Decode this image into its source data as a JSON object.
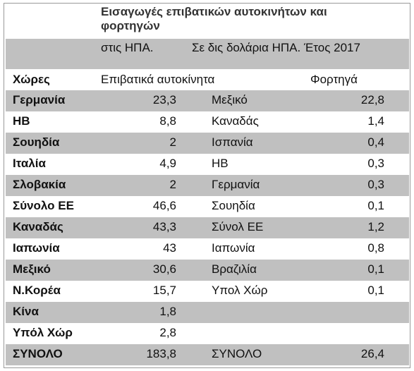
{
  "header": {
    "title": "Εισαγωγές επιβατικών αυτοκινήτων και φορτηγών",
    "unit_left": "στις ΗΠΑ.",
    "unit_right": "Σε δις δολάρια ΗΠΑ. Έτος 2017"
  },
  "table": {
    "columns": [
      "Χώρες",
      "Επιβατικά αυτοκίνητα",
      "Φορτηγά"
    ],
    "rows": [
      [
        "Γερμανία",
        "23,3",
        "Μεξικό",
        "22,8"
      ],
      [
        "ΗΒ",
        "8,8",
        "Καναδάς",
        "1,4"
      ],
      [
        "Σουηδία",
        "2",
        "Ισπανία",
        "0,4"
      ],
      [
        "Ιταλία",
        "4,9",
        "ΗΒ",
        "0,3"
      ],
      [
        "Σλοβακία",
        "2",
        "Γερμανία",
        "0,3"
      ],
      [
        "Σύνολο ΕΕ",
        "46,6",
        "Σουηδία",
        "0,1"
      ],
      [
        "Καναδάς",
        "43,3",
        "Σύνολ ΕΕ",
        "1,2"
      ],
      [
        "Ιαπωνία",
        "43",
        "Ιαπωνία",
        "0,8"
      ],
      [
        "Μεξικό",
        "30,6",
        "Βραζιλία",
        "0,1"
      ],
      [
        "Ν.Κορέα",
        "15,7",
        "Υπολ Χώρ",
        "0,1"
      ],
      [
        "Κίνα",
        "1,8",
        null,
        null
      ],
      [
        "Υπόλ Χώρ",
        "2,8",
        null,
        null
      ],
      [
        "ΣΥΝΟΛΟ",
        "183,8",
        "ΣΥΝΟΛΟ",
        "26,4"
      ]
    ]
  }
}
